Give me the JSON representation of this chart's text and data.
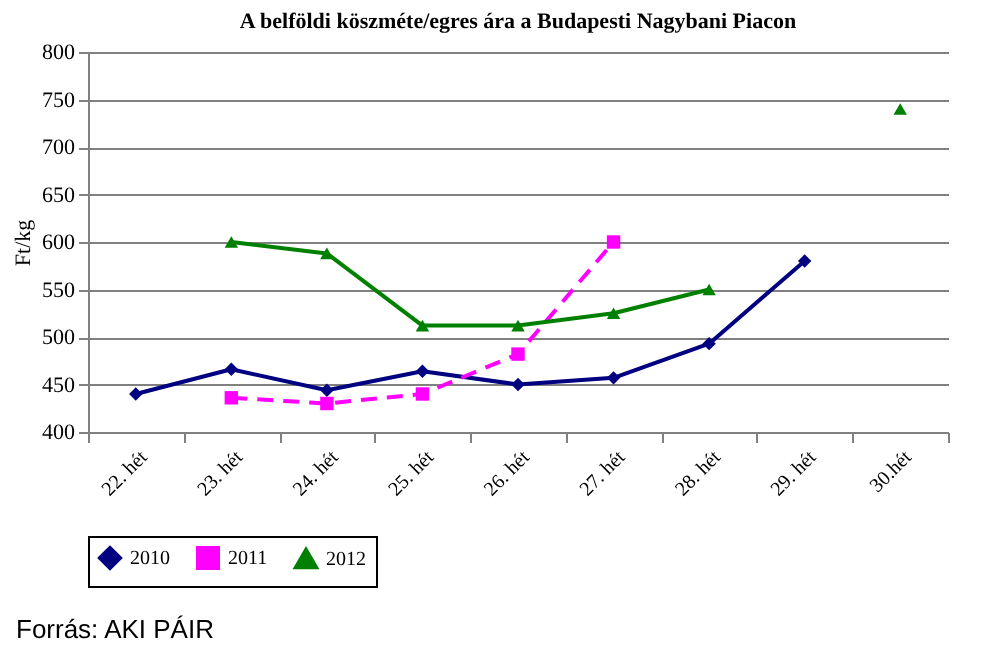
{
  "chart_data": {
    "type": "line",
    "title": "A belföldi köszméte/egres ára a Budapesti Nagybani Piacon",
    "ylabel": "Ft/kg",
    "categories": [
      "22. hét",
      "23. hét",
      "24. hét",
      "25. hét",
      "26. hét",
      "27. hét",
      "28. hét",
      "29. hét",
      "30.hét"
    ],
    "series": [
      {
        "name": "2010",
        "color": "#000080",
        "marker": "diamond",
        "line_style": "solid",
        "values": [
          440,
          466,
          444,
          464,
          450,
          457,
          493,
          580,
          null
        ]
      },
      {
        "name": "2011",
        "color": "#ff00ff",
        "marker": "square",
        "line_style": "dashed",
        "values": [
          null,
          436,
          430,
          440,
          482,
          600,
          null,
          null,
          null
        ]
      },
      {
        "name": "2012",
        "color": "#008000",
        "marker": "triangle",
        "line_style": "solid",
        "values": [
          null,
          600,
          588,
          512,
          512,
          525,
          550,
          null,
          740
        ]
      }
    ],
    "ylim": [
      400,
      800
    ],
    "yticks": [
      400,
      450,
      500,
      550,
      600,
      650,
      700,
      750,
      800
    ],
    "grid": "y",
    "legend": "bottom",
    "annotations": [
      "Forrás: AKI PÁIR"
    ]
  }
}
